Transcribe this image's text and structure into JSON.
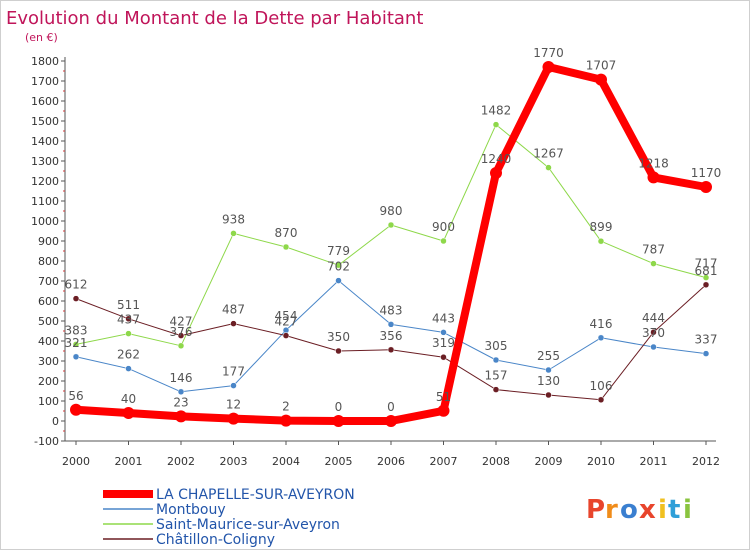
{
  "chart_data": {
    "type": "line",
    "title": "Evolution du Montant de la Dette par Habitant",
    "subtitle": "(en €)",
    "xlabel": "",
    "ylabel": "",
    "x": [
      "2000",
      "2001",
      "2002",
      "2003",
      "2004",
      "2005",
      "2006",
      "2007",
      "2008",
      "2009",
      "2010",
      "2011",
      "2012"
    ],
    "ylim": [
      -100,
      1800
    ],
    "yticks": [
      -100,
      0,
      100,
      200,
      300,
      400,
      500,
      600,
      700,
      800,
      900,
      1000,
      1100,
      1200,
      1300,
      1400,
      1500,
      1600,
      1700,
      1800
    ],
    "grid": false,
    "legend_position": "bottom-left",
    "series": [
      {
        "name": "Montbouy",
        "color": "#4a86c8",
        "width": 1,
        "values": [
          321,
          262,
          146,
          177,
          454,
          702,
          483,
          443,
          305,
          255,
          416,
          370,
          337
        ]
      },
      {
        "name": "Saint-Maurice-sur-Aveyron",
        "color": "#8ed84a",
        "width": 1,
        "values": [
          383,
          437,
          376,
          938,
          870,
          779,
          980,
          900,
          1482,
          1267,
          899,
          787,
          717
        ]
      },
      {
        "name": "Châtillon-Coligny",
        "color": "#6b1e24",
        "width": 1,
        "values": [
          612,
          511,
          427,
          487,
          427,
          350,
          356,
          319,
          157,
          130,
          106,
          444,
          681
        ]
      },
      {
        "name": "LA CHAPELLE-SUR-AVEYRON",
        "color": "#ff0000",
        "width": 8,
        "values": [
          56,
          40,
          23,
          12,
          2,
          0,
          0,
          51,
          1240,
          1770,
          1707,
          1218,
          1170
        ]
      }
    ],
    "legend_order": [
      "LA CHAPELLE-SUR-AVEYRON",
      "Montbouy",
      "Saint-Maurice-sur-Aveyron",
      "Châtillon-Coligny"
    ],
    "watermark": "Proxiti",
    "colors": {
      "title": "#c0155a",
      "axis_text": "#333333",
      "legend_text": "#2255aa",
      "label_text": "#555555"
    }
  }
}
